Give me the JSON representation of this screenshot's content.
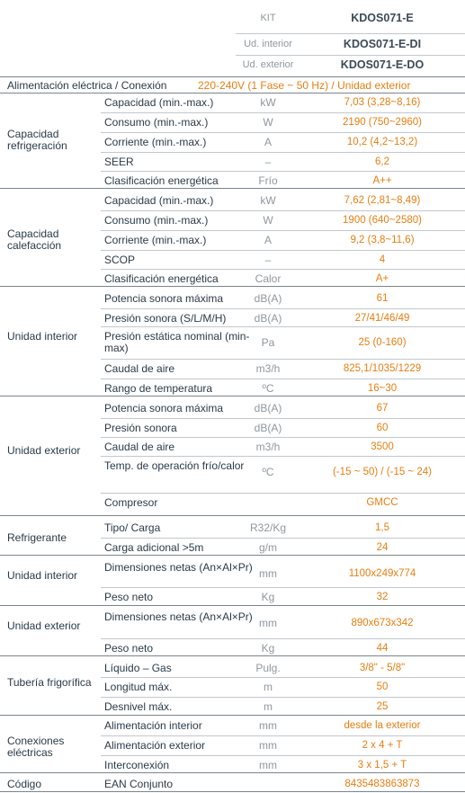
{
  "header": {
    "kit_label": "KIT",
    "kit_value": "KDOS071-E",
    "interior_label": "Ud. interior",
    "interior_value": "KDOS071-E-DI",
    "exterior_label": "Ud. exterior",
    "exterior_value": "KDOS071-E-DO"
  },
  "power": {
    "label": "Alimentación eléctrica / Conexión",
    "value": "220-240V   (1 Fase ~ 50 Hz) / Unidad exterior"
  },
  "sections": [
    {
      "category": "Capacidad refrigeración",
      "rows": [
        {
          "label": "Capacidad (min.-max.)",
          "unit": "kW",
          "value": "7,03 (3,28~8,16)"
        },
        {
          "label": "Consumo (min.-max.)",
          "unit": "W",
          "value": "2190 (750~2960)"
        },
        {
          "label": "Corriente (min.-max.)",
          "unit": "A",
          "value": "10,2 (4,2~13,2)"
        },
        {
          "label": "SEER",
          "unit": "–",
          "value": "6,2"
        },
        {
          "label": "Clasificación energética",
          "unit": "Frío",
          "value": "A++"
        }
      ]
    },
    {
      "category": "Capacidad calefacción",
      "rows": [
        {
          "label": "Capacidad (min.-max.)",
          "unit": "kW",
          "value": "7,62 (2,81~8,49)"
        },
        {
          "label": "Consumo (min.-max.)",
          "unit": "W",
          "value": "1900 (640~2580)"
        },
        {
          "label": "Corriente (min.-max.)",
          "unit": "A",
          "value": "9,2 (3,8~11,6)"
        },
        {
          "label": "SCOP",
          "unit": "–",
          "value": "4"
        },
        {
          "label": "Clasificación energética",
          "unit": "Calor",
          "value": "A+"
        }
      ]
    },
    {
      "category": "Unidad interior",
      "rows": [
        {
          "label": "Potencia sonora máxima",
          "unit": "dB(A)",
          "value": "61"
        },
        {
          "label": "Presión sonora  (S/L/M/H)",
          "unit": "dB(A)",
          "value": "27/41/46/49"
        },
        {
          "label": "Presión estática nominal (min-max)",
          "unit": "Pa",
          "value": "25 (0-160)"
        },
        {
          "label": "Caudal de aire",
          "unit": "m3/h",
          "value": "825,1/1035/1229"
        },
        {
          "label": "Rango de temperatura",
          "unit": "ºC",
          "value": "16~30"
        }
      ]
    },
    {
      "category": "Unidad exterior",
      "rows": [
        {
          "label": "Potencia sonora máxima",
          "unit": "dB(A)",
          "value": "67"
        },
        {
          "label": "Presión sonora",
          "unit": "dB(A)",
          "value": "60"
        },
        {
          "label": "Caudal de aire",
          "unit": "m3/h",
          "value": "3500"
        },
        {
          "label": "Temp. de operación frío/calor",
          "unit": "ºC",
          "value": "(-15 ~ 50) / (-15 ~ 24)"
        },
        {
          "label": "Compresor",
          "unit": "",
          "value": "GMCC"
        }
      ]
    },
    {
      "category": "Refrigerante",
      "rows": [
        {
          "label": "Tipo/ Carga",
          "unit": "R32/Kg",
          "value": "1,5"
        },
        {
          "label": "Carga adicional >5m",
          "unit": "g/m",
          "value": "24"
        }
      ]
    },
    {
      "category": "Unidad interior",
      "rows": [
        {
          "label": "Dimensiones netas (An×Al×Pr)",
          "unit": "mm",
          "value": "1100x249x774"
        },
        {
          "label": "Peso neto",
          "unit": "Kg",
          "value": "32"
        }
      ]
    },
    {
      "category": "Unidad exterior",
      "rows": [
        {
          "label": "Dimensiones netas (An×Al×Pr)",
          "unit": "mm",
          "value": "890x673x342"
        },
        {
          "label": "Peso neto",
          "unit": "Kg",
          "value": "44"
        }
      ]
    },
    {
      "category": "Tubería frigorífica",
      "rows": [
        {
          "label": "Líquido – Gas",
          "unit": "Pulg.",
          "value": "3/8\" - 5/8\""
        },
        {
          "label": "Longitud máx.",
          "unit": "m",
          "value": "50"
        },
        {
          "label": "Desnivel máx.",
          "unit": "m",
          "value": "25"
        }
      ]
    },
    {
      "category": "Conexiones eléctricas",
      "rows": [
        {
          "label": "Alimentación interior",
          "unit": "mm",
          "value": "desde la exterior"
        },
        {
          "label": "Alimentación exterior",
          "unit": "mm",
          "value": "2 x 4 + T"
        },
        {
          "label": "Interconexión",
          "unit": "mm",
          "value": "3 x 1,5 + T"
        }
      ]
    },
    {
      "category": "Código",
      "rows": [
        {
          "label": "EAN Conjunto",
          "unit": "",
          "value": "8435483863873"
        }
      ]
    }
  ]
}
